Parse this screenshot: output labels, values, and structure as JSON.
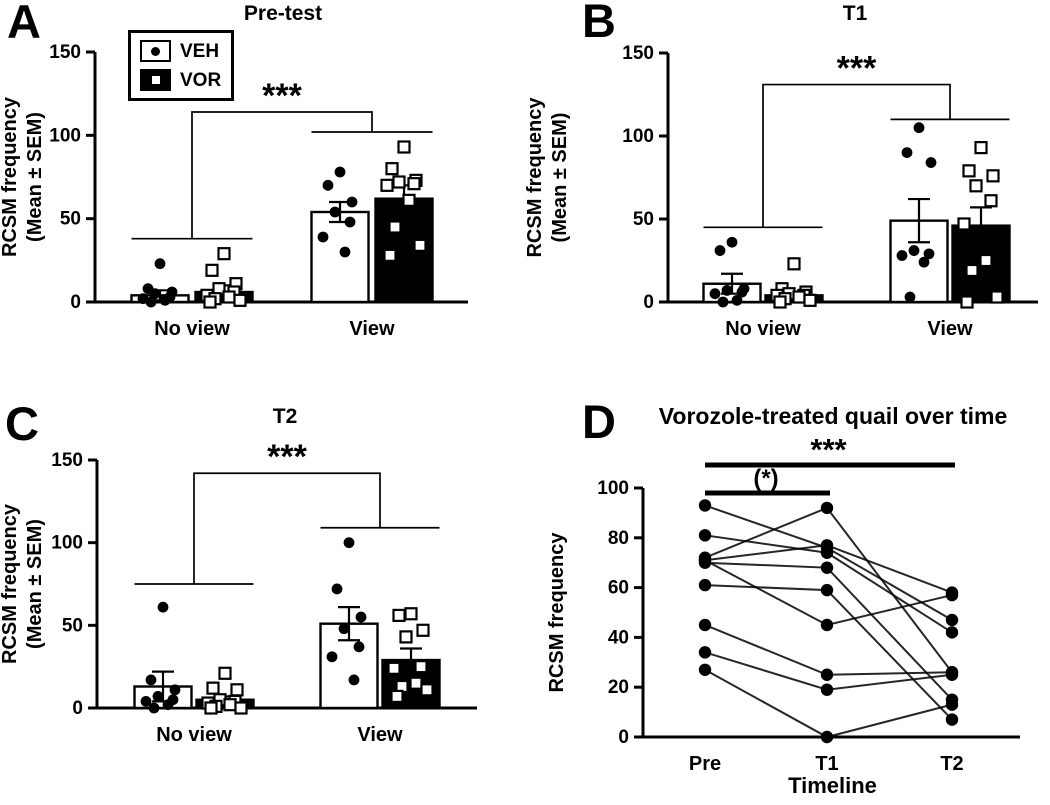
{
  "legend": {
    "items": [
      {
        "label": "VEH",
        "marker": "circle",
        "swatch_fill": "#ffffff"
      },
      {
        "label": "VOR",
        "marker": "square",
        "swatch_fill": "#000000"
      }
    ]
  },
  "colors": {
    "ink": "#000000",
    "paper": "#ffffff"
  },
  "chart_data": [
    {
      "panel": "A",
      "type": "bar",
      "title": "Pre-test",
      "ylabel": "RCSM frequency",
      "ylabel2": "(Mean ± SEM)",
      "y_ticks": [
        0,
        50,
        100,
        150
      ],
      "y_max": 150,
      "categories": [
        "No view",
        "View"
      ],
      "series": [
        {
          "name": "VEH",
          "marker": "circle",
          "fill": "#ffffff",
          "means": [
            4,
            54
          ],
          "sems": [
            3,
            6
          ],
          "points": [
            [
              23,
              8,
              6,
              5,
              3,
              2,
              1,
              0
            ],
            [
              78,
              70,
              60,
              54,
              48,
              39,
              30
            ]
          ]
        },
        {
          "name": "VOR",
          "marker": "square",
          "fill": "#000000",
          "means": [
            6,
            62
          ],
          "sems": [
            4,
            8
          ],
          "points": [
            [
              29,
              19,
              11,
              8,
              6,
              4,
              3,
              2,
              1,
              0
            ],
            [
              93,
              80,
              73,
              72,
              71,
              70,
              61,
              45,
              34,
              28
            ]
          ]
        }
      ],
      "significance": {
        "label": "***",
        "group1_y": 38,
        "group2_y": 102,
        "apex_y": 114
      }
    },
    {
      "panel": "B",
      "type": "bar",
      "title": "T1",
      "ylabel": "RCSM frequency",
      "ylabel2": "(Mean ± SEM)",
      "y_ticks": [
        0,
        50,
        100,
        150
      ],
      "y_max": 150,
      "categories": [
        "No view",
        "View"
      ],
      "series": [
        {
          "name": "VEH",
          "marker": "circle",
          "fill": "#ffffff",
          "means": [
            11,
            49
          ],
          "sems": [
            6,
            13
          ],
          "points": [
            [
              36,
              31,
              8,
              7,
              6,
              5,
              1,
              0
            ],
            [
              105,
              90,
              84,
              31,
              29,
              28,
              24,
              3
            ]
          ]
        },
        {
          "name": "VOR",
          "marker": "square",
          "fill": "#000000",
          "means": [
            4,
            46
          ],
          "sems": [
            2,
            11
          ],
          "points": [
            [
              23,
              8,
              6,
              5,
              4,
              4,
              3,
              2,
              1,
              0
            ],
            [
              93,
              79,
              76,
              70,
              61,
              47,
              25,
              19,
              3,
              0
            ]
          ]
        }
      ],
      "significance": {
        "label": "***",
        "group1_y": 45,
        "group2_y": 110,
        "apex_y": 131
      }
    },
    {
      "panel": "C",
      "type": "bar",
      "title": "T2",
      "ylabel": "RCSM frequency",
      "ylabel2": "(Mean ± SEM)",
      "y_ticks": [
        0,
        50,
        100,
        150
      ],
      "y_max": 150,
      "categories": [
        "No view",
        "View"
      ],
      "series": [
        {
          "name": "VEH",
          "marker": "circle",
          "fill": "#ffffff",
          "means": [
            13,
            51
          ],
          "sems": [
            9,
            10
          ],
          "points": [
            [
              61,
              17,
              11,
              7,
              5,
              4,
              2,
              0
            ],
            [
              100,
              72,
              55,
              48,
              37,
              31,
              17
            ]
          ]
        },
        {
          "name": "VOR",
          "marker": "square",
          "fill": "#000000",
          "means": [
            5,
            29
          ],
          "sems": [
            2,
            7
          ],
          "points": [
            [
              21,
              12,
              11,
              5,
              4,
              3,
              2,
              1,
              0,
              0
            ],
            [
              57,
              56,
              47,
              43,
              25,
              24,
              15,
              13,
              11,
              7
            ]
          ]
        }
      ],
      "significance": {
        "label": "***",
        "group1_y": 75,
        "group2_y": 109,
        "apex_y": 142
      }
    },
    {
      "panel": "D",
      "type": "paired_lines",
      "title": "Vorozole-treated quail over time",
      "ylabel": "RCSM frequency",
      "xlabel": "Timeline",
      "y_ticks": [
        0,
        20,
        40,
        60,
        80,
        100
      ],
      "y_max": 100,
      "categories": [
        "Pre",
        "T1",
        "T2"
      ],
      "subjects": [
        [
          93,
          76,
          47
        ],
        [
          81,
          74,
          42
        ],
        [
          72,
          92,
          26
        ],
        [
          71,
          45,
          57
        ],
        [
          71,
          77,
          58
        ],
        [
          70,
          68,
          15
        ],
        [
          61,
          59,
          7
        ],
        [
          45,
          25,
          26
        ],
        [
          34,
          19,
          25
        ],
        [
          27,
          0,
          13
        ]
      ],
      "significance": [
        {
          "label": "***",
          "from": 0,
          "to": 2
        },
        {
          "label": "(*)",
          "from": 0,
          "to": 1
        }
      ]
    }
  ]
}
